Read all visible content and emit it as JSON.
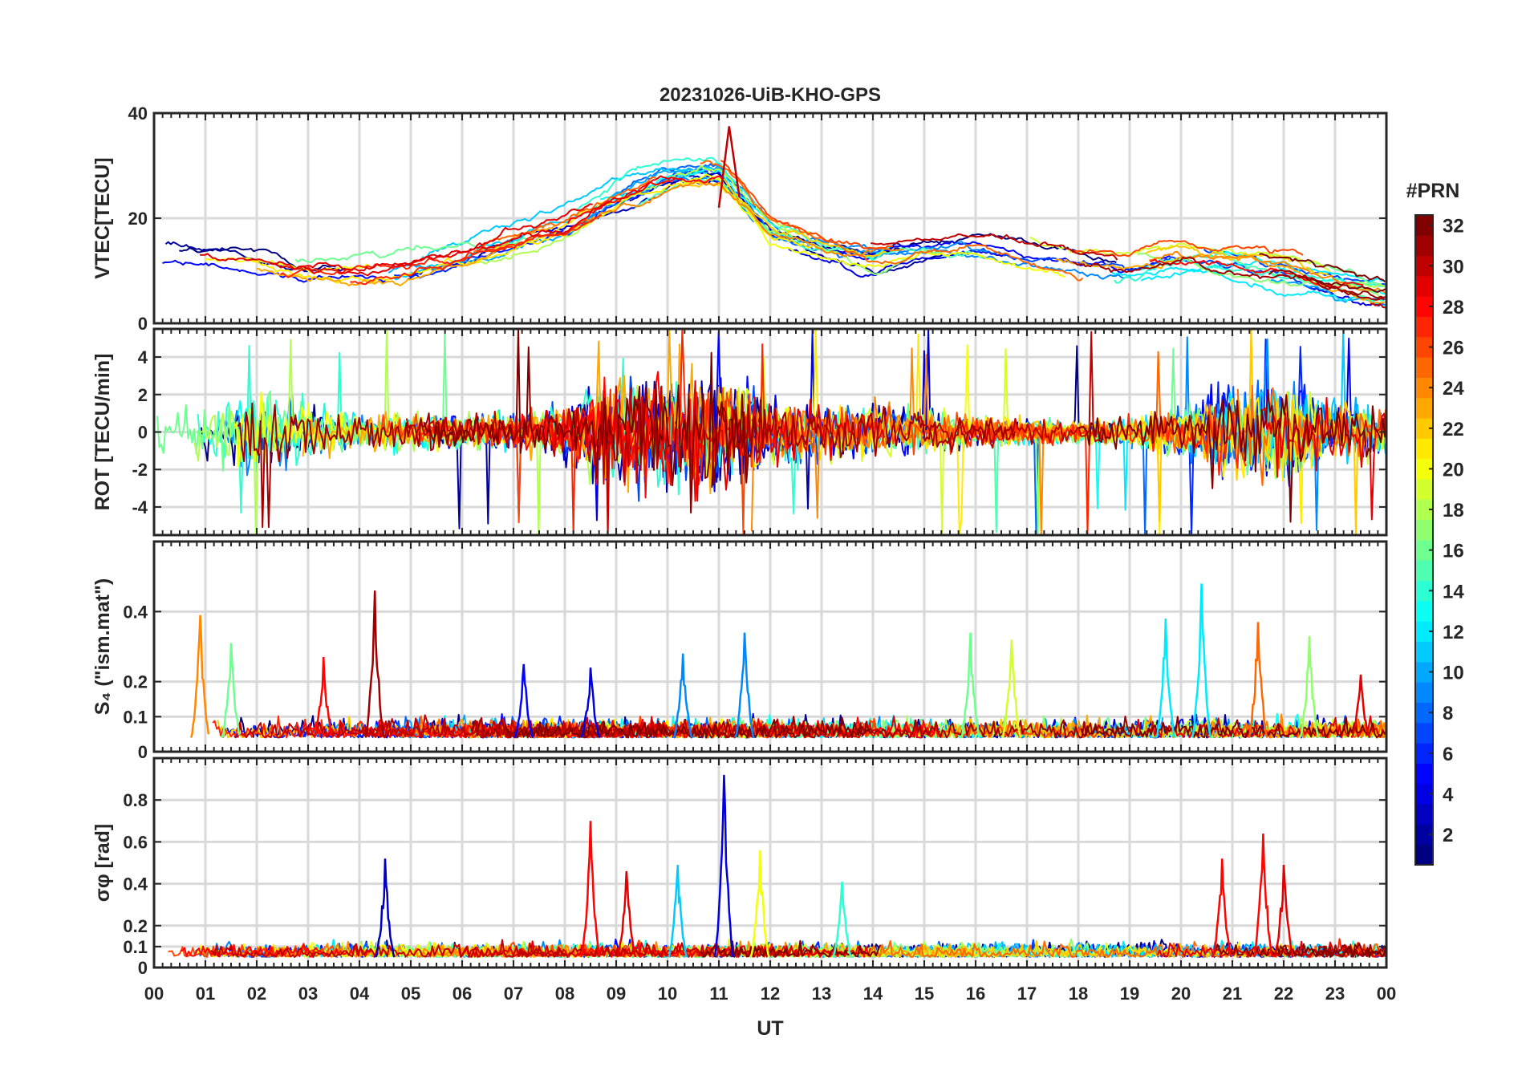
{
  "chart_data": {
    "type": "line",
    "title": "20231026-UiB-KHO-GPS",
    "xlabel": "UT",
    "x_range_hours": [
      0,
      24
    ],
    "x_ticks": [
      "00",
      "01",
      "02",
      "03",
      "04",
      "05",
      "06",
      "07",
      "08",
      "09",
      "10",
      "11",
      "12",
      "13",
      "14",
      "15",
      "16",
      "17",
      "18",
      "19",
      "20",
      "21",
      "22",
      "23",
      "00"
    ],
    "colorbar": {
      "label": "#PRN",
      "range": [
        1,
        32
      ],
      "ticks": [
        "2",
        "4",
        "6",
        "8",
        "10",
        "12",
        "14",
        "16",
        "18",
        "20",
        "22",
        "24",
        "26",
        "28",
        "30",
        "32"
      ],
      "colormap": "jet"
    },
    "panels": [
      {
        "id": "vtec",
        "ylabel": "VTEC[TECU]",
        "ylim": [
          0,
          40
        ],
        "y_ticks": [
          "0",
          "20",
          "40"
        ],
        "y_tick_values": [
          0,
          20,
          40
        ],
        "envelope": {
          "hours": [
            0,
            1,
            2,
            3,
            4,
            5,
            6,
            7,
            8,
            9,
            10,
            11,
            12,
            13,
            14,
            15,
            16,
            17,
            18,
            19,
            20,
            21,
            22,
            23,
            24
          ],
          "values": [
            14,
            13,
            12,
            10,
            10,
            11,
            13,
            16,
            19,
            24,
            28,
            29,
            18,
            15,
            13,
            15,
            15,
            13,
            11,
            10,
            12,
            11,
            10,
            8,
            6
          ]
        },
        "peak_value": 37.5
      },
      {
        "id": "rot",
        "ylabel": "ROT [TECU/min]",
        "ylim": [
          -5.5,
          5.5
        ],
        "y_ticks": [
          "-4",
          "-2",
          "0",
          "2",
          "4"
        ],
        "y_tick_values": [
          -4,
          -2,
          0,
          2,
          4
        ],
        "activity": {
          "hours": [
            0,
            1,
            2,
            3,
            4,
            5,
            6,
            7,
            8,
            9,
            10,
            11,
            12,
            13,
            14,
            15,
            16,
            17,
            18,
            19,
            20,
            21,
            22,
            23,
            24
          ],
          "amplitude": [
            2.0,
            1.8,
            2.2,
            1.6,
            1.0,
            1.0,
            0.9,
            1.0,
            1.6,
            3.2,
            3.4,
            3.6,
            1.8,
            1.5,
            1.7,
            1.3,
            0.9,
            0.8,
            0.6,
            0.8,
            1.4,
            3.0,
            2.8,
            1.8,
            1.5
          ]
        }
      },
      {
        "id": "s4",
        "ylabel": "S₄ (\"ism.mat\")",
        "ylim": [
          0,
          0.6
        ],
        "y_ticks": [
          "0",
          "0.1",
          "0.2",
          "0.4"
        ],
        "y_tick_values": [
          0,
          0.1,
          0.2,
          0.4
        ],
        "baseline": 0.04,
        "spikes": [
          {
            "hour": 0.9,
            "value": 0.39,
            "prn": 24
          },
          {
            "hour": 1.5,
            "value": 0.31,
            "prn": 16
          },
          {
            "hour": 3.3,
            "value": 0.27,
            "prn": 28
          },
          {
            "hour": 4.3,
            "value": 0.46,
            "prn": 31
          },
          {
            "hour": 7.2,
            "value": 0.25,
            "prn": 5
          },
          {
            "hour": 8.5,
            "value": 0.24,
            "prn": 4
          },
          {
            "hour": 10.3,
            "value": 0.28,
            "prn": 9
          },
          {
            "hour": 11.5,
            "value": 0.34,
            "prn": 9
          },
          {
            "hour": 15.9,
            "value": 0.34,
            "prn": 16
          },
          {
            "hour": 16.7,
            "value": 0.32,
            "prn": 19
          },
          {
            "hour": 19.7,
            "value": 0.38,
            "prn": 12
          },
          {
            "hour": 20.4,
            "value": 0.48,
            "prn": 12
          },
          {
            "hour": 21.5,
            "value": 0.37,
            "prn": 25
          },
          {
            "hour": 22.5,
            "value": 0.33,
            "prn": 17
          },
          {
            "hour": 23.5,
            "value": 0.22,
            "prn": 29
          }
        ]
      },
      {
        "id": "sigma-phi",
        "ylabel": "σφ [rad]",
        "ylim": [
          0,
          1.0
        ],
        "y_ticks": [
          "0",
          "0.1",
          "0.2",
          "0.4",
          "0.6",
          "0.8"
        ],
        "y_tick_values": [
          0,
          0.1,
          0.2,
          0.4,
          0.6,
          0.8
        ],
        "baseline": 0.05,
        "spikes": [
          {
            "hour": 4.5,
            "value": 0.52,
            "prn": 3
          },
          {
            "hour": 8.5,
            "value": 0.7,
            "prn": 28
          },
          {
            "hour": 9.2,
            "value": 0.46,
            "prn": 29
          },
          {
            "hour": 10.2,
            "value": 0.49,
            "prn": 11
          },
          {
            "hour": 11.1,
            "value": 0.92,
            "prn": 4
          },
          {
            "hour": 11.8,
            "value": 0.56,
            "prn": 20
          },
          {
            "hour": 13.4,
            "value": 0.41,
            "prn": 14
          },
          {
            "hour": 20.8,
            "value": 0.52,
            "prn": 28
          },
          {
            "hour": 21.6,
            "value": 0.64,
            "prn": 28
          },
          {
            "hour": 22.0,
            "value": 0.49,
            "prn": 29
          }
        ]
      }
    ],
    "series_count": 32
  }
}
